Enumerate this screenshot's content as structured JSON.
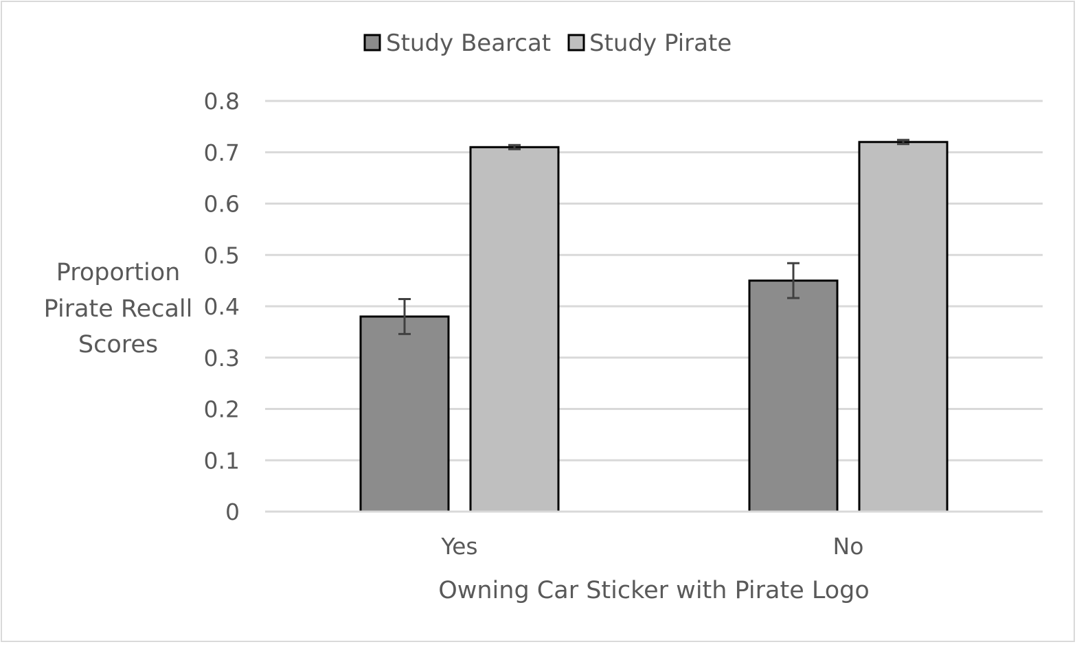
{
  "chart_data": {
    "type": "bar",
    "categories": [
      "Yes",
      "No"
    ],
    "series": [
      {
        "name": "Study Bearcat",
        "values": [
          0.38,
          0.45
        ],
        "error": [
          0.034,
          0.034
        ],
        "color": "#8c8c8c"
      },
      {
        "name": "Study Pirate",
        "values": [
          0.71,
          0.72
        ],
        "error": [
          0.004,
          0.004
        ],
        "color": "#bfbfbf"
      }
    ],
    "xlabel": "Owning Car Sticker with Pirate Logo",
    "ylabel_lines": [
      "Proportion",
      "Pirate Recall",
      "Scores"
    ],
    "ylim": [
      0,
      0.8
    ],
    "yticks": [
      0,
      0.1,
      0.2,
      0.3,
      0.4,
      0.5,
      0.6,
      0.7,
      0.8
    ],
    "ytick_labels": [
      "0",
      "0.1",
      "0.2",
      "0.3",
      "0.4",
      "0.5",
      "0.6",
      "0.7",
      "0.8"
    ],
    "grid": true,
    "legend_position": "top-center",
    "colors": {
      "gridline": "#d9d9d9",
      "text": "#595959",
      "bar_outline": "#000000",
      "error_bar": "#404040"
    }
  }
}
